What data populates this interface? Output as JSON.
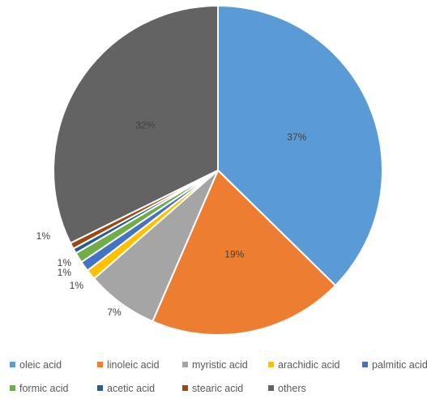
{
  "chart_data": {
    "type": "pie",
    "title": "",
    "slices": [
      {
        "label": "oleic acid",
        "value": 37,
        "data_label": "37%",
        "color": "#5B9BD5"
      },
      {
        "label": "linoleic acid",
        "value": 19,
        "data_label": "19%",
        "color": "#ED7D31"
      },
      {
        "label": "myristic acid",
        "value": 7,
        "data_label": "7%",
        "color": "#A5A5A5"
      },
      {
        "label": "arachidic acid",
        "value": 1,
        "data_label": "1%",
        "color": "#FFC000"
      },
      {
        "label": "palmitic acid",
        "value": 1,
        "data_label": "1%",
        "color": "#4472C4"
      },
      {
        "label": "formic acid",
        "value": 1,
        "data_label": "1%",
        "color": "#70AD47"
      },
      {
        "label": "acetic acid",
        "value": 0.5,
        "data_label": "",
        "color": "#255E91"
      },
      {
        "label": "stearic acid",
        "value": 0.6,
        "data_label": "1%",
        "color": "#9E480E"
      },
      {
        "label": "others",
        "value": 32,
        "data_label": "32%",
        "color": "#636363"
      }
    ],
    "legend": {
      "placement": "bottom",
      "entries": [
        "oleic acid",
        "linoleic acid",
        "myristic acid",
        "arachidic acid",
        "palmitic acid",
        "formic acid",
        "acetic acid",
        "stearic acid",
        "others"
      ]
    }
  }
}
